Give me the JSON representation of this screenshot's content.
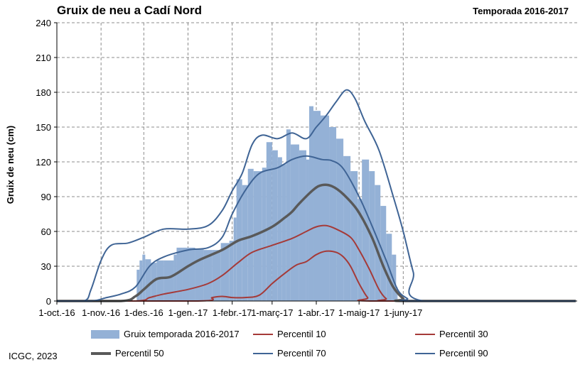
{
  "title": "Gruix de neu a Cadí Nord",
  "season": "Temporada 2016-2017",
  "credit": "ICGC, 2023",
  "colors": {
    "bars": "#94b1d6",
    "p10": "#a53a38",
    "p30": "#a53a38",
    "p50": "#595959",
    "p70": "#3f6495",
    "p90": "#3f6495",
    "grid": "#8c8c8c"
  },
  "chart_data": {
    "type": "bar",
    "ylabel": "Gruix de neu (cm)",
    "ylim": [
      0,
      240
    ],
    "yticks": [
      "0",
      "30",
      "60",
      "90",
      "120",
      "150",
      "180",
      "210",
      "240"
    ],
    "x_ticks": [
      "1-oct.-16",
      "1-nov.-16",
      "1-des.-16",
      "1-gen.-17",
      "1-febr.-17",
      "1-març-17",
      "1-abr.-17",
      "1-maig-17",
      "1-juny-17"
    ],
    "xlim": [
      "2016-10-01",
      "2017-09-30"
    ],
    "grid": true,
    "legend_position": "bottom",
    "bar_series": {
      "name": "Gruix temporada 2016-2017",
      "points": [
        [
          "2016-11-24",
          0
        ],
        [
          "2016-11-26",
          27
        ],
        [
          "2016-11-28",
          35
        ],
        [
          "2016-11-30",
          40
        ],
        [
          "2016-12-02",
          36
        ],
        [
          "2016-12-06",
          33
        ],
        [
          "2016-12-10",
          35
        ],
        [
          "2016-12-15",
          35
        ],
        [
          "2016-12-22",
          40
        ],
        [
          "2016-12-24",
          46
        ],
        [
          "2016-12-28",
          46
        ],
        [
          "2017-01-02",
          46
        ],
        [
          "2017-01-06",
          45
        ],
        [
          "2017-01-12",
          44
        ],
        [
          "2017-01-18",
          44
        ],
        [
          "2017-01-24",
          50
        ],
        [
          "2017-01-30",
          52
        ],
        [
          "2017-02-02",
          72
        ],
        [
          "2017-02-04",
          105
        ],
        [
          "2017-02-08",
          100
        ],
        [
          "2017-02-12",
          114
        ],
        [
          "2017-02-16",
          112
        ],
        [
          "2017-02-22",
          115
        ],
        [
          "2017-02-25",
          137
        ],
        [
          "2017-03-01",
          130
        ],
        [
          "2017-03-05",
          124
        ],
        [
          "2017-03-08",
          118
        ],
        [
          "2017-03-11",
          148
        ],
        [
          "2017-03-14",
          135
        ],
        [
          "2017-03-20",
          130
        ],
        [
          "2017-03-25",
          122
        ],
        [
          "2017-03-27",
          168
        ],
        [
          "2017-03-30",
          164
        ],
        [
          "2017-04-04",
          160
        ],
        [
          "2017-04-10",
          150
        ],
        [
          "2017-04-15",
          140
        ],
        [
          "2017-04-20",
          125
        ],
        [
          "2017-04-25",
          112
        ],
        [
          "2017-04-30",
          88
        ],
        [
          "2017-05-03",
          122
        ],
        [
          "2017-05-08",
          112
        ],
        [
          "2017-05-12",
          100
        ],
        [
          "2017-05-16",
          82
        ],
        [
          "2017-05-20",
          58
        ],
        [
          "2017-05-24",
          40
        ],
        [
          "2017-05-27",
          12
        ],
        [
          "2017-05-28",
          0
        ]
      ]
    },
    "series": [
      {
        "name": "Percentil 10",
        "key": "p10",
        "width": 2,
        "points": [
          [
            "2016-10-01",
            0
          ],
          [
            "2017-01-08",
            0
          ],
          [
            "2017-01-18",
            3
          ],
          [
            "2017-01-25",
            4
          ],
          [
            "2017-02-01",
            3
          ],
          [
            "2017-02-10",
            3
          ],
          [
            "2017-02-20",
            5
          ],
          [
            "2017-03-01",
            15
          ],
          [
            "2017-03-10",
            24
          ],
          [
            "2017-03-18",
            31
          ],
          [
            "2017-03-25",
            34
          ],
          [
            "2017-04-01",
            40
          ],
          [
            "2017-04-08",
            43
          ],
          [
            "2017-04-15",
            42
          ],
          [
            "2017-04-20",
            38
          ],
          [
            "2017-04-25",
            30
          ],
          [
            "2017-05-01",
            15
          ],
          [
            "2017-05-07",
            3
          ],
          [
            "2017-05-12",
            0
          ],
          [
            "2017-09-30",
            0
          ]
        ]
      },
      {
        "name": "Percentil 30",
        "key": "p30",
        "width": 2,
        "points": [
          [
            "2016-10-01",
            0
          ],
          [
            "2016-11-25",
            0
          ],
          [
            "2016-12-05",
            3
          ],
          [
            "2016-12-15",
            6
          ],
          [
            "2017-01-01",
            10
          ],
          [
            "2017-01-15",
            15
          ],
          [
            "2017-01-25",
            22
          ],
          [
            "2017-02-05",
            33
          ],
          [
            "2017-02-15",
            42
          ],
          [
            "2017-03-01",
            48
          ],
          [
            "2017-03-15",
            54
          ],
          [
            "2017-03-25",
            60
          ],
          [
            "2017-04-01",
            64
          ],
          [
            "2017-04-08",
            65
          ],
          [
            "2017-04-15",
            62
          ],
          [
            "2017-04-25",
            55
          ],
          [
            "2017-05-01",
            44
          ],
          [
            "2017-05-08",
            28
          ],
          [
            "2017-05-15",
            10
          ],
          [
            "2017-05-20",
            2
          ],
          [
            "2017-05-25",
            0
          ],
          [
            "2017-09-30",
            0
          ]
        ]
      },
      {
        "name": "Percentil 50",
        "key": "p50",
        "width": 3.5,
        "points": [
          [
            "2016-10-01",
            0
          ],
          [
            "2016-11-15",
            0
          ],
          [
            "2016-11-25",
            4
          ],
          [
            "2016-12-01",
            10
          ],
          [
            "2016-12-10",
            19
          ],
          [
            "2016-12-20",
            21
          ],
          [
            "2017-01-01",
            30
          ],
          [
            "2017-01-10",
            36
          ],
          [
            "2017-01-25",
            44
          ],
          [
            "2017-02-05",
            52
          ],
          [
            "2017-02-15",
            56
          ],
          [
            "2017-03-01",
            64
          ],
          [
            "2017-03-10",
            72
          ],
          [
            "2017-03-15",
            77
          ],
          [
            "2017-03-20",
            84
          ],
          [
            "2017-03-30",
            96
          ],
          [
            "2017-04-05",
            100
          ],
          [
            "2017-04-12",
            99
          ],
          [
            "2017-04-20",
            92
          ],
          [
            "2017-04-30",
            78
          ],
          [
            "2017-05-10",
            55
          ],
          [
            "2017-05-18",
            30
          ],
          [
            "2017-05-25",
            12
          ],
          [
            "2017-06-01",
            2
          ],
          [
            "2017-06-05",
            0
          ],
          [
            "2017-09-30",
            0
          ]
        ]
      },
      {
        "name": "Percentil 70",
        "key": "p70",
        "width": 2,
        "points": [
          [
            "2016-10-01",
            0
          ],
          [
            "2016-10-25",
            0
          ],
          [
            "2016-11-05",
            3
          ],
          [
            "2016-11-15",
            6
          ],
          [
            "2016-11-25",
            12
          ],
          [
            "2016-12-05",
            30
          ],
          [
            "2016-12-15",
            38
          ],
          [
            "2017-01-01",
            44
          ],
          [
            "2017-01-15",
            46
          ],
          [
            "2017-01-25",
            55
          ],
          [
            "2017-02-01",
            75
          ],
          [
            "2017-02-10",
            95
          ],
          [
            "2017-02-20",
            110
          ],
          [
            "2017-03-05",
            115
          ],
          [
            "2017-03-15",
            122
          ],
          [
            "2017-03-25",
            125
          ],
          [
            "2017-04-05",
            122
          ],
          [
            "2017-04-12",
            121
          ],
          [
            "2017-04-20",
            114
          ],
          [
            "2017-05-01",
            90
          ],
          [
            "2017-05-10",
            65
          ],
          [
            "2017-05-20",
            35
          ],
          [
            "2017-05-28",
            10
          ],
          [
            "2017-06-04",
            2
          ],
          [
            "2017-06-08",
            0
          ],
          [
            "2017-09-30",
            0
          ]
        ]
      },
      {
        "name": "Percentil 90",
        "key": "p90",
        "width": 2,
        "points": [
          [
            "2016-10-01",
            0
          ],
          [
            "2016-10-20",
            0
          ],
          [
            "2016-10-25",
            10
          ],
          [
            "2016-11-01",
            35
          ],
          [
            "2016-11-08",
            48
          ],
          [
            "2016-11-20",
            50
          ],
          [
            "2016-12-01",
            55
          ],
          [
            "2016-12-15",
            62
          ],
          [
            "2017-01-01",
            62
          ],
          [
            "2017-01-15",
            65
          ],
          [
            "2017-01-25",
            78
          ],
          [
            "2017-02-01",
            95
          ],
          [
            "2017-02-08",
            110
          ],
          [
            "2017-02-15",
            135
          ],
          [
            "2017-02-22",
            143
          ],
          [
            "2017-03-05",
            140
          ],
          [
            "2017-03-15",
            145
          ],
          [
            "2017-03-25",
            140
          ],
          [
            "2017-04-01",
            150
          ],
          [
            "2017-04-08",
            160
          ],
          [
            "2017-04-15",
            172
          ],
          [
            "2017-04-22",
            182
          ],
          [
            "2017-04-28",
            175
          ],
          [
            "2017-05-05",
            155
          ],
          [
            "2017-05-15",
            130
          ],
          [
            "2017-05-25",
            90
          ],
          [
            "2017-06-01",
            60
          ],
          [
            "2017-06-08",
            25
          ],
          [
            "2017-06-15",
            0
          ],
          [
            "2017-09-30",
            0
          ]
        ]
      }
    ]
  }
}
